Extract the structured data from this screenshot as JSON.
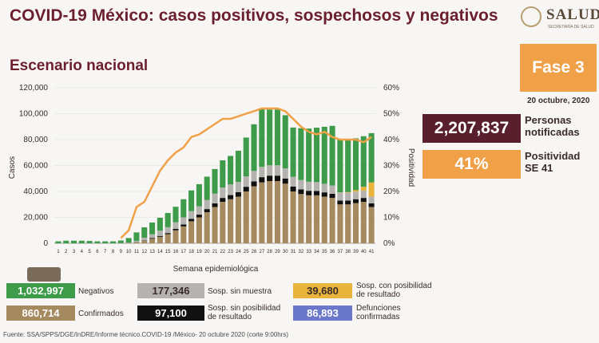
{
  "header": {
    "title": "COVID-19 México: casos positivos, sospechosos y negativos",
    "subtitle": "Escenario nacional",
    "logo_text": "SALUD",
    "logo_subtext": "SECRETARÍA DE SALUD"
  },
  "fase": {
    "label": "Fase 3"
  },
  "date": "20 octubre, 2020",
  "stats": {
    "notificadas_value": "2,207,837",
    "notificadas_label": "Personas notificadas",
    "positividad_value": "41%",
    "positividad_label": "Positividad SE 41"
  },
  "legend": {
    "negativos": {
      "value": "1,032,997",
      "label": "Negativos",
      "color": "#3d9b4a"
    },
    "sin_muestra": {
      "value": "177,346",
      "label": "Sosp. sin muestra",
      "color": "#b5b3b0"
    },
    "posibilidad": {
      "value": "39,680",
      "label": "Sosp. con posibilidad de resultado",
      "color": "#e8b43c"
    },
    "confirmados": {
      "value": "860,714",
      "label": "Confirmados",
      "color": "#a68a5f"
    },
    "sin_posibilidad": {
      "value": "97,100",
      "label": "Sosp. sin posibilidad de resultado",
      "color": "#111111"
    },
    "defunciones": {
      "value": "86,893",
      "label": "Defunciones confirmadas",
      "color": "#6b77c8"
    }
  },
  "source": "Fuente: SSA/SPPS/DGE/InDRE/Informe técnico.COVID-19 /México- 20 octubre 2020 (corte 9:00hrs)",
  "chart_data": {
    "type": "bar",
    "xlabel": "Semana epidemiológica",
    "ylabel": "Casos",
    "y2label": "Positividad",
    "ylim": [
      0,
      120000
    ],
    "y2lim": [
      0,
      60
    ],
    "yticks": [
      "0",
      "20,000",
      "40,000",
      "60,000",
      "80,000",
      "100,000",
      "120,000"
    ],
    "y2ticks": [
      "0%",
      "10%",
      "20%",
      "30%",
      "40%",
      "50%",
      "60%"
    ],
    "categories": [
      "1",
      "2",
      "3",
      "4",
      "5",
      "6",
      "7",
      "8",
      "9",
      "10",
      "11",
      "12",
      "13",
      "14",
      "15",
      "16",
      "17",
      "18",
      "19",
      "20",
      "21",
      "22",
      "23",
      "24",
      "25",
      "26",
      "27",
      "28",
      "29",
      "30",
      "31",
      "32",
      "33",
      "34",
      "35",
      "36",
      "37",
      "38",
      "39",
      "40",
      "41"
    ],
    "series": [
      {
        "name": "Confirmados",
        "color": "#a68a5f",
        "values": [
          0,
          0,
          0,
          0,
          0,
          0,
          0,
          0,
          50,
          200,
          800,
          2000,
          3500,
          5000,
          7000,
          10000,
          13000,
          17000,
          20000,
          24000,
          28000,
          32000,
          34000,
          36000,
          40000,
          44000,
          47000,
          48000,
          48000,
          46000,
          40000,
          38000,
          37000,
          37000,
          36000,
          35000,
          30000,
          30000,
          31000,
          32000,
          28000
        ]
      },
      {
        "name": "Sosp. sin posibilidad de resultado",
        "color": "#111111",
        "values": [
          0,
          0,
          0,
          0,
          0,
          0,
          0,
          0,
          0,
          50,
          100,
          300,
          500,
          700,
          900,
          1200,
          1500,
          1800,
          2100,
          2400,
          2800,
          3000,
          3200,
          3400,
          3600,
          3800,
          4000,
          4200,
          4200,
          4000,
          3800,
          3600,
          3500,
          3400,
          3300,
          3200,
          3000,
          3000,
          3000,
          3000,
          2800
        ]
      },
      {
        "name": "Sosp. sin muestra",
        "color": "#b5b3b0",
        "values": [
          0,
          0,
          0,
          0,
          0,
          0,
          0,
          0,
          100,
          300,
          1000,
          2000,
          3000,
          4000,
          4500,
          5000,
          5500,
          6000,
          6500,
          7000,
          7500,
          8000,
          8200,
          8000,
          8000,
          8000,
          8000,
          8000,
          8000,
          7800,
          7500,
          7200,
          7000,
          6800,
          6600,
          6400,
          6200,
          6000,
          5800,
          5600,
          5200
        ]
      },
      {
        "name": "Sosp. con posibilidad de resultado",
        "color": "#e8b43c",
        "values": [
          0,
          0,
          0,
          0,
          0,
          0,
          0,
          0,
          0,
          0,
          0,
          0,
          0,
          0,
          0,
          0,
          0,
          0,
          0,
          0,
          0,
          0,
          0,
          0,
          0,
          0,
          0,
          0,
          0,
          0,
          0,
          0,
          0,
          0,
          0,
          0,
          100,
          500,
          1200,
          3000,
          11000
        ]
      },
      {
        "name": "Negativos",
        "color": "#3d9b4a",
        "values": [
          1500,
          2000,
          2000,
          2000,
          1800,
          1500,
          1500,
          1500,
          2000,
          3500,
          6500,
          8000,
          9000,
          10000,
          11000,
          12000,
          14000,
          16000,
          17000,
          18000,
          19000,
          21000,
          22000,
          24000,
          30000,
          36000,
          45000,
          43000,
          43000,
          41000,
          38000,
          40000,
          41000,
          42000,
          44000,
          46000,
          41000,
          40000,
          40000,
          39000,
          38000
        ]
      }
    ],
    "positividad": {
      "name": "Positividad",
      "color": "#f0a046",
      "values": [
        null,
        null,
        null,
        null,
        null,
        null,
        null,
        null,
        2,
        5,
        14,
        16,
        22,
        28,
        32,
        35,
        37,
        41,
        42,
        44,
        46,
        48,
        48,
        49,
        50,
        51,
        52,
        52,
        52,
        51,
        48,
        45,
        43,
        42,
        43,
        41,
        40,
        40,
        40,
        39,
        41
      ]
    }
  }
}
